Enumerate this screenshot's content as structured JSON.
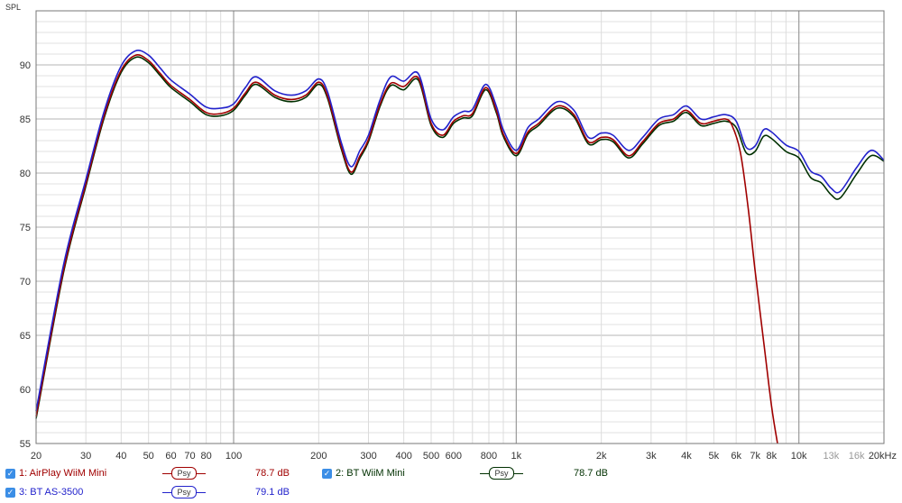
{
  "chart_data": {
    "type": "line",
    "xscale": "log",
    "ylabel": "SPL",
    "xlim": [
      20,
      20000
    ],
    "ylim": [
      55,
      95
    ],
    "yticks": [
      55,
      60,
      65,
      70,
      75,
      80,
      85,
      90
    ],
    "xticks": [
      {
        "v": 20,
        "label": "20",
        "dim": false
      },
      {
        "v": 30,
        "label": "30",
        "dim": false
      },
      {
        "v": 40,
        "label": "40",
        "dim": false
      },
      {
        "v": 50,
        "label": "50",
        "dim": false
      },
      {
        "v": 60,
        "label": "60",
        "dim": false
      },
      {
        "v": 70,
        "label": "70",
        "dim": false
      },
      {
        "v": 80,
        "label": "80",
        "dim": false
      },
      {
        "v": 100,
        "label": "100",
        "dim": false
      },
      {
        "v": 200,
        "label": "200",
        "dim": false
      },
      {
        "v": 300,
        "label": "300",
        "dim": false
      },
      {
        "v": 400,
        "label": "400",
        "dim": false
      },
      {
        "v": 500,
        "label": "500",
        "dim": false
      },
      {
        "v": 600,
        "label": "600",
        "dim": false
      },
      {
        "v": 800,
        "label": "800",
        "dim": false
      },
      {
        "v": 1000,
        "label": "1k",
        "dim": false
      },
      {
        "v": 2000,
        "label": "2k",
        "dim": false
      },
      {
        "v": 3000,
        "label": "3k",
        "dim": false
      },
      {
        "v": 4000,
        "label": "4k",
        "dim": false
      },
      {
        "v": 5000,
        "label": "5k",
        "dim": false
      },
      {
        "v": 6000,
        "label": "6k",
        "dim": false
      },
      {
        "v": 7000,
        "label": "7k",
        "dim": false
      },
      {
        "v": 8000,
        "label": "8k",
        "dim": false
      },
      {
        "v": 10000,
        "label": "10k",
        "dim": false
      },
      {
        "v": 13000,
        "label": "13k",
        "dim": true
      },
      {
        "v": 16000,
        "label": "16k",
        "dim": true
      },
      {
        "v": 20000,
        "label": "20kHz",
        "dim": false
      }
    ],
    "grid": true,
    "series": [
      {
        "name": "1: AirPlay WiiM Mini",
        "color": "#a00000",
        "x": [
          20,
          25,
          30,
          35,
          40,
          45,
          50,
          55,
          60,
          70,
          80,
          90,
          100,
          110,
          120,
          140,
          160,
          180,
          200,
          215,
          240,
          260,
          280,
          300,
          330,
          360,
          400,
          450,
          500,
          550,
          600,
          650,
          700,
          780,
          850,
          900,
          1000,
          1100,
          1200,
          1400,
          1600,
          1800,
          2000,
          2200,
          2500,
          2800,
          3200,
          3600,
          4000,
          4500,
          5000,
          5500,
          5800,
          6200,
          6600,
          7000,
          7500,
          8000,
          8400
        ],
        "y": [
          57.5,
          71,
          79,
          85.5,
          89.5,
          90.9,
          90.4,
          89.2,
          88.1,
          86.8,
          85.6,
          85.5,
          86.0,
          87.4,
          88.4,
          87.2,
          86.8,
          87.2,
          88.4,
          87.1,
          82.5,
          80.1,
          81.6,
          83.1,
          86.4,
          88.3,
          88.0,
          88.8,
          84.6,
          83.5,
          84.8,
          85.3,
          85.5,
          87.9,
          85.8,
          83.6,
          81.8,
          83.8,
          84.6,
          86.2,
          85.4,
          82.9,
          83.3,
          83.1,
          81.6,
          82.9,
          84.6,
          85.0,
          85.8,
          84.6,
          84.8,
          85.0,
          84.4,
          82.0,
          77.0,
          71.0,
          64.5,
          58.5,
          55.0
        ]
      },
      {
        "name": "2: BT WiiM Mini",
        "color": "#003000",
        "x": [
          20,
          25,
          30,
          35,
          40,
          45,
          50,
          55,
          60,
          70,
          80,
          90,
          100,
          110,
          120,
          140,
          160,
          180,
          200,
          215,
          240,
          260,
          280,
          300,
          330,
          360,
          400,
          450,
          500,
          550,
          600,
          650,
          700,
          780,
          850,
          900,
          1000,
          1100,
          1200,
          1400,
          1600,
          1800,
          2000,
          2200,
          2500,
          2800,
          3200,
          3600,
          4000,
          4500,
          5000,
          5500,
          6000,
          6500,
          7000,
          7500,
          8000,
          9000,
          10000,
          11000,
          12000,
          13000,
          14000,
          16000,
          18000,
          20000
        ],
        "y": [
          57.3,
          70.8,
          78.8,
          85.3,
          89.3,
          90.7,
          90.2,
          89.0,
          87.9,
          86.6,
          85.4,
          85.3,
          85.8,
          87.2,
          88.2,
          87.0,
          86.6,
          87.0,
          88.2,
          86.9,
          82.3,
          79.9,
          81.4,
          82.9,
          86.2,
          88.1,
          87.7,
          88.6,
          84.4,
          83.3,
          84.6,
          85.1,
          85.3,
          87.7,
          85.6,
          83.4,
          81.6,
          83.6,
          84.4,
          86.0,
          85.2,
          82.7,
          83.1,
          82.9,
          81.4,
          82.7,
          84.4,
          84.8,
          85.6,
          84.4,
          84.6,
          84.8,
          84.2,
          81.9,
          82.0,
          83.4,
          83.2,
          82.0,
          81.4,
          79.6,
          79.1,
          78.0,
          77.7,
          79.9,
          81.6,
          81.1
        ]
      },
      {
        "name": "3: BT AS-3500",
        "color": "#2222cc",
        "x": [
          20,
          25,
          30,
          35,
          40,
          45,
          50,
          55,
          60,
          70,
          80,
          90,
          100,
          110,
          120,
          140,
          160,
          180,
          200,
          215,
          240,
          260,
          280,
          300,
          330,
          360,
          400,
          450,
          500,
          550,
          600,
          650,
          700,
          780,
          850,
          900,
          1000,
          1100,
          1200,
          1400,
          1600,
          1800,
          2000,
          2200,
          2500,
          2800,
          3200,
          3600,
          4000,
          4500,
          5000,
          5500,
          6000,
          6500,
          7000,
          7500,
          8000,
          9000,
          10000,
          11000,
          12000,
          13000,
          14000,
          16000,
          18000,
          20000
        ],
        "y": [
          58.0,
          71.5,
          79.4,
          85.9,
          89.9,
          91.3,
          90.9,
          89.7,
          88.6,
          87.3,
          86.1,
          86.0,
          86.4,
          87.9,
          88.9,
          87.6,
          87.2,
          87.6,
          88.7,
          87.5,
          82.9,
          80.6,
          82.1,
          83.5,
          86.8,
          88.9,
          88.5,
          89.2,
          85.0,
          84.0,
          85.2,
          85.7,
          85.9,
          88.2,
          86.2,
          84.0,
          82.1,
          84.2,
          85.0,
          86.6,
          85.8,
          83.3,
          83.7,
          83.5,
          82.1,
          83.3,
          85.0,
          85.4,
          86.2,
          85.0,
          85.2,
          85.4,
          84.8,
          82.4,
          82.5,
          84.0,
          83.8,
          82.6,
          82.0,
          80.2,
          79.7,
          78.6,
          78.3,
          80.5,
          82.1,
          81.2
        ]
      }
    ]
  },
  "legend": {
    "items": [
      {
        "label": "1: AirPlay WiiM Mini",
        "psy": "Psy",
        "value": "78.7 dB",
        "color": "#a00000"
      },
      {
        "label": "2: BT WiiM Mini",
        "psy": "Psy",
        "value": "78.7 dB",
        "color": "#003000"
      },
      {
        "label": "3: BT AS-3500",
        "psy": "Psy",
        "value": "79.1 dB",
        "color": "#2222cc"
      }
    ]
  }
}
